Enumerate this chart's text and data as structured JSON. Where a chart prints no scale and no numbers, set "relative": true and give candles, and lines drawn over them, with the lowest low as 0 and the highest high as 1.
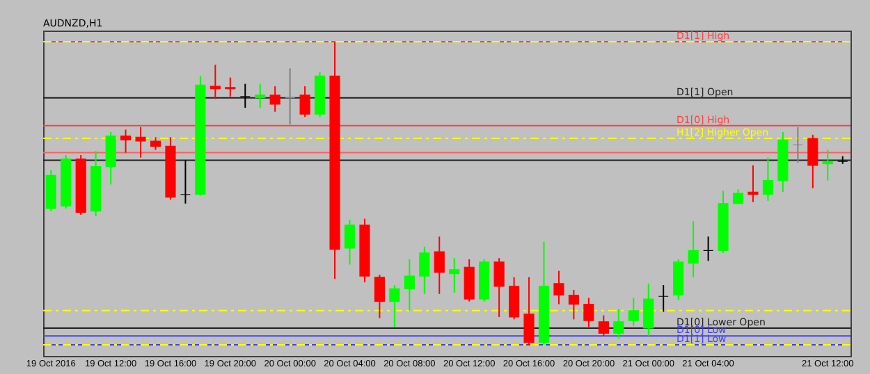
{
  "chart_data": {
    "type": "candlestick",
    "title": "AUDNZD,H1",
    "relative": true,
    "categories": [
      "19 Oct 2016",
      null,
      null,
      null,
      "19 Oct 12:00",
      null,
      null,
      null,
      "19 Oct 16:00",
      null,
      null,
      null,
      "19 Oct 20:00",
      null,
      null,
      null,
      "20 Oct 00:00",
      null,
      null,
      null,
      "20 Oct 04:00",
      null,
      null,
      null,
      "20 Oct 08:00",
      null,
      null,
      null,
      "20 Oct 12:00",
      null,
      null,
      null,
      "20 Oct 16:00",
      null,
      null,
      null,
      "20 Oct 20:00",
      null,
      null,
      null,
      "21 Oct 00:00",
      null,
      null,
      null,
      "21 Oct 04:00",
      null,
      null,
      null,
      null,
      null,
      null,
      null,
      "21 Oct 12:00",
      null
    ],
    "ohlc": [
      [
        0.45,
        0.576,
        0.441,
        0.559
      ],
      [
        0.458,
        0.626,
        0.45,
        0.613
      ],
      [
        0.613,
        0.626,
        0.429,
        0.437
      ],
      [
        0.441,
        0.639,
        0.424,
        0.588
      ],
      [
        0.588,
        0.702,
        0.529,
        0.689
      ],
      [
        0.689,
        0.71,
        0.634,
        0.676
      ],
      [
        0.685,
        0.718,
        0.618,
        0.672
      ],
      [
        0.672,
        0.685,
        0.643,
        0.655
      ],
      [
        0.655,
        0.685,
        0.479,
        0.487
      ],
      [
        0.496,
        0.609,
        0.466,
        0.496
      ],
      [
        0.496,
        0.887,
        0.492,
        0.857
      ],
      [
        0.853,
        0.924,
        0.811,
        0.845
      ],
      [
        0.849,
        0.882,
        0.819,
        0.845
      ],
      [
        0.819,
        0.861,
        0.782,
        0.819
      ],
      [
        0.815,
        0.861,
        0.782,
        0.824
      ],
      [
        0.824,
        0.853,
        0.769,
        0.794
      ],
      [
        0.815,
        0.912,
        0.727,
        0.815
      ],
      [
        0.824,
        0.853,
        0.752,
        0.761
      ],
      [
        0.761,
        0.899,
        0.752,
        0.887
      ],
      [
        0.887,
        1.0,
        0.218,
        0.315
      ],
      [
        0.319,
        0.412,
        0.265,
        0.395
      ],
      [
        0.395,
        0.416,
        0.206,
        0.227
      ],
      [
        0.223,
        0.231,
        0.088,
        0.143
      ],
      [
        0.143,
        0.197,
        0.059,
        0.185
      ],
      [
        0.185,
        0.282,
        0.113,
        0.227
      ],
      [
        0.227,
        0.324,
        0.168,
        0.303
      ],
      [
        0.307,
        0.357,
        0.168,
        0.239
      ],
      [
        0.235,
        0.286,
        0.172,
        0.248
      ],
      [
        0.256,
        0.282,
        0.143,
        0.151
      ],
      [
        0.151,
        0.282,
        0.143,
        0.273
      ],
      [
        0.273,
        0.286,
        0.092,
        0.193
      ],
      [
        0.193,
        0.223,
        0.084,
        0.092
      ],
      [
        0.101,
        0.223,
        0,
        0.008
      ],
      [
        0.008,
        0.34,
        0,
        0.193
      ],
      [
        0.202,
        0.244,
        0.134,
        0.164
      ],
      [
        0.164,
        0.181,
        0.084,
        0.134
      ],
      [
        0.134,
        0.155,
        0.059,
        0.08
      ],
      [
        0.076,
        0.097,
        0.029,
        0.038
      ],
      [
        0.038,
        0.118,
        0.021,
        0.076
      ],
      [
        0.08,
        0.155,
        0.063,
        0.113
      ],
      [
        0.055,
        0.202,
        0.029,
        0.151
      ],
      [
        0.16,
        0.197,
        0.109,
        0.16
      ],
      [
        0.164,
        0.282,
        0.147,
        0.273
      ],
      [
        0.269,
        0.408,
        0.223,
        0.311
      ],
      [
        0.311,
        0.357,
        0.277,
        0.311
      ],
      [
        0.311,
        0.508,
        0.303,
        0.466
      ],
      [
        0.466,
        0.513,
        0.466,
        0.5
      ],
      [
        0.504,
        0.592,
        0.471,
        0.496
      ],
      [
        0.496,
        0.618,
        0.475,
        0.542
      ],
      [
        0.542,
        0.702,
        0.504,
        0.676
      ],
      [
        0.66,
        0.718,
        0.601,
        0.66
      ],
      [
        0.681,
        0.693,
        0.517,
        0.592
      ],
      [
        0.597,
        0.643,
        0.542,
        0.605
      ],
      [
        0.605,
        0.622,
        0.597,
        0.605
      ]
    ],
    "colors": [
      "#00ff00",
      "#00ff00",
      "#ff0000",
      "#00ff00",
      "#00ff00",
      "#ff0000",
      "#ff0000",
      "#ff0000",
      "#ff0000",
      "#000000",
      "#00ff00",
      "#ff0000",
      "#ff0000",
      "#000000",
      "#00ff00",
      "#ff0000",
      "#808080",
      "#ff0000",
      "#00ff00",
      "#ff0000",
      "#00ff00",
      "#ff0000",
      "#ff0000",
      "#00ff00",
      "#00ff00",
      "#00ff00",
      "#ff0000",
      "#00ff00",
      "#ff0000",
      "#00ff00",
      "#ff0000",
      "#ff0000",
      "#ff0000",
      "#00ff00",
      "#ff0000",
      "#ff0000",
      "#ff0000",
      "#ff0000",
      "#00ff00",
      "#00ff00",
      "#00ff00",
      "#000000",
      "#00ff00",
      "#00ff00",
      "#000000",
      "#00ff00",
      "#00ff00",
      "#ff0000",
      "#00ff00",
      "#00ff00",
      "#808080",
      "#ff0000",
      "#00ff00",
      "#000000"
    ],
    "ref_lines": [
      {
        "axis": "y",
        "value": 1,
        "label": "D1[1] High",
        "color": "#ff4040"
      },
      {
        "axis": "y",
        "value": 1,
        "color": "#ffff00",
        "line_style": "dashed"
      },
      {
        "axis": "y",
        "value": 0.815,
        "label": "D1[1] Open",
        "color": "#202020"
      },
      {
        "axis": "y",
        "value": 0.723,
        "label": "D1[0] High",
        "color": "#ff4040"
      },
      {
        "axis": "y",
        "value": 0.681,
        "label": "H1[2] Higher Open",
        "color": "#ffff00",
        "line_style": "dashed"
      },
      {
        "axis": "y",
        "value": 0.634,
        "color": "#ff6060"
      },
      {
        "axis": "y",
        "value": 0.609,
        "color": "#202020"
      },
      {
        "axis": "y",
        "value": 0.113,
        "color": "#ffff00",
        "line_style": "dashed"
      },
      {
        "axis": "y",
        "value": 0.055,
        "label": "D1[0] Lower Open",
        "color": "#202020"
      },
      {
        "axis": "y",
        "value": 0.029,
        "label": "D1[0] Low",
        "color": "#4040ff"
      },
      {
        "axis": "y",
        "value": 0,
        "label": "D1[1] Low",
        "color": "#4040ff"
      },
      {
        "axis": "y",
        "value": 0,
        "color": "#ffff00",
        "line_style": "dashed"
      }
    ]
  }
}
